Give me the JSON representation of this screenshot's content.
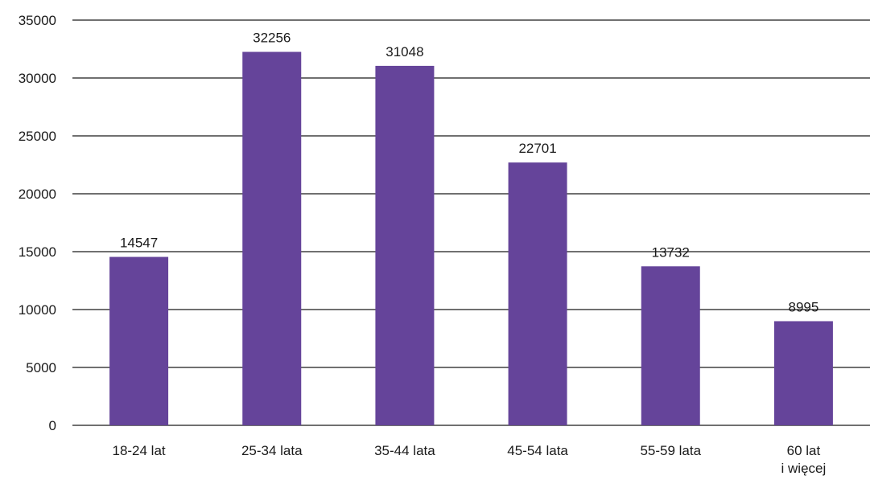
{
  "chart_data": {
    "type": "bar",
    "categories": [
      [
        "18-24 lat"
      ],
      [
        "25-34 lata"
      ],
      [
        "35-44 lata"
      ],
      [
        "45-54 lata"
      ],
      [
        "55-59 lata"
      ],
      [
        "60 lat",
        "i więcej"
      ]
    ],
    "values": [
      14547,
      32256,
      31048,
      22701,
      13732,
      8995
    ],
    "data_labels": [
      "14547",
      "32256",
      "31048",
      "22701",
      "13732",
      "8995"
    ],
    "yticks": [
      "0",
      "5000",
      "10000",
      "15000",
      "20000",
      "25000",
      "30000",
      "35000"
    ],
    "ylim": [
      0,
      35000
    ],
    "grid": true,
    "legend": "none",
    "title": "",
    "xlabel": "",
    "ylabel": ""
  },
  "colors": {
    "bar": "#65449a",
    "grid": "#1a1a1a"
  }
}
